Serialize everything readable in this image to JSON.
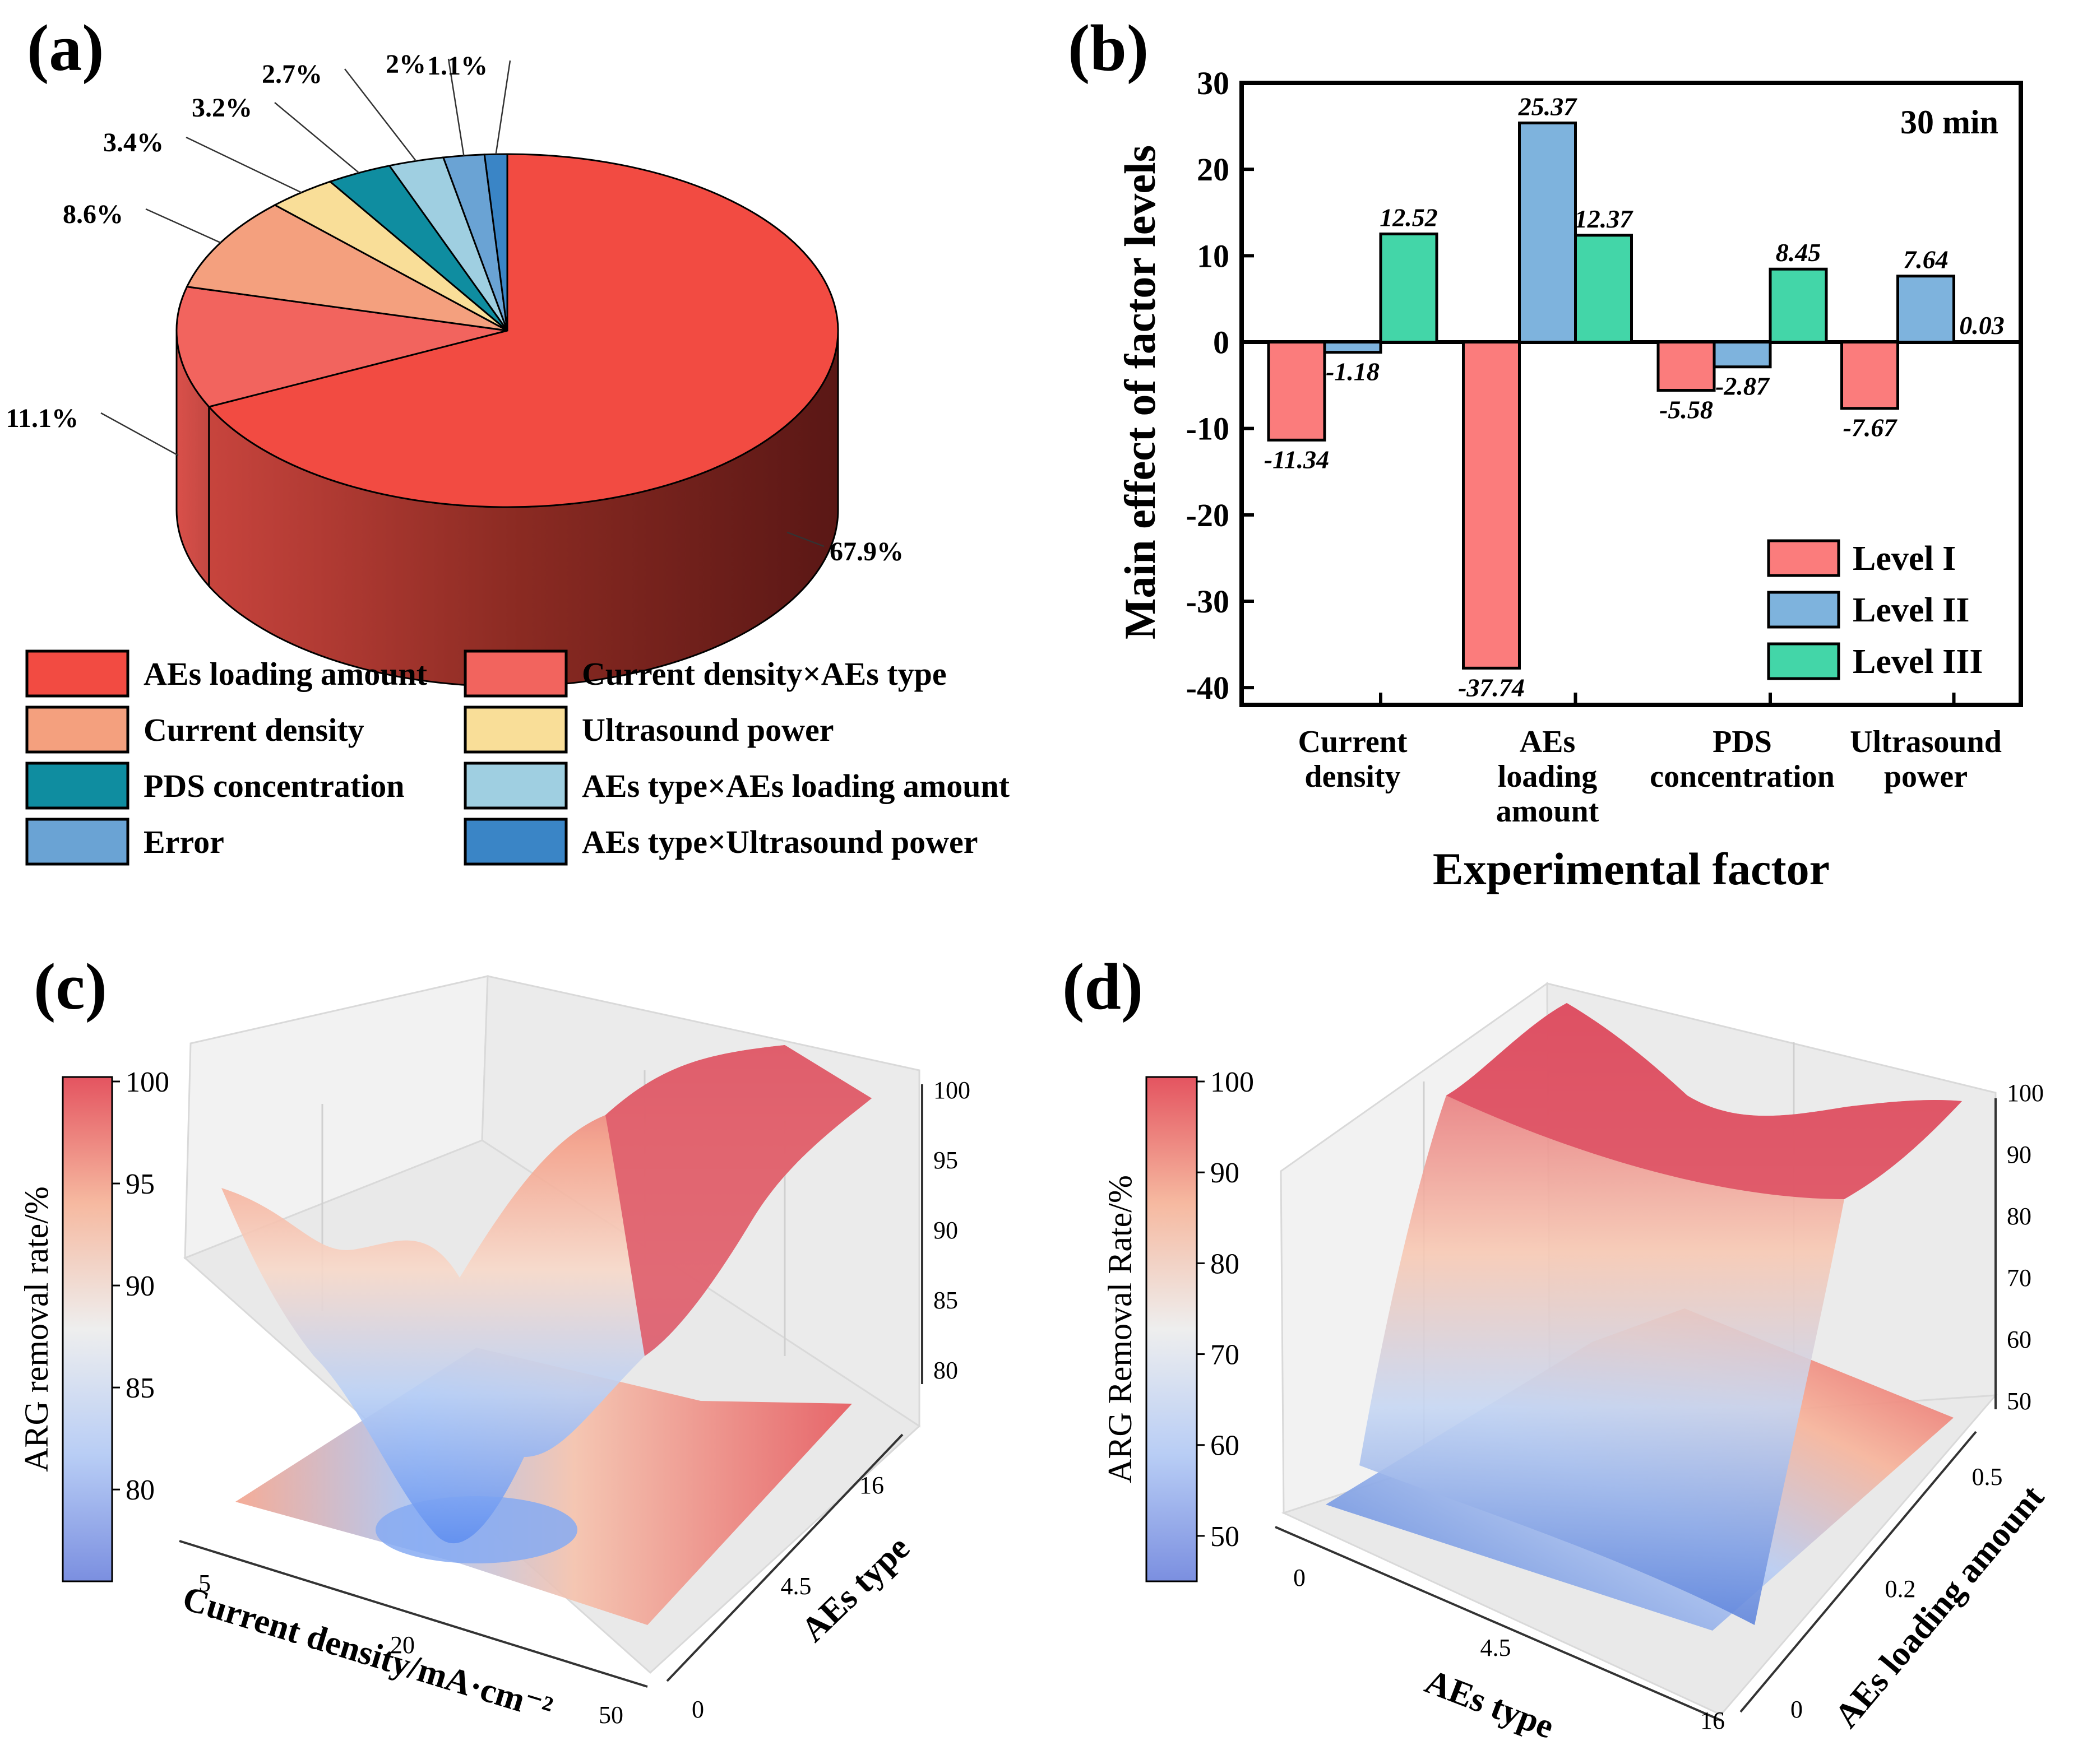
{
  "panel_labels": [
    "(a)",
    "(b)",
    "(c)",
    "(d)"
  ],
  "chart_data": [
    {
      "id": "a",
      "type": "pie",
      "title": "",
      "slices": [
        {
          "label": "AEs loading amount",
          "value": 67.9,
          "text": "67.9%",
          "color": "#f24b42"
        },
        {
          "label": "Current density×AEs type",
          "value": 11.1,
          "text": "11.1%",
          "color": "#f2645e"
        },
        {
          "label": "Current density",
          "value": 8.6,
          "text": "8.6%",
          "color": "#f4a07e"
        },
        {
          "label": "Ultrasound power",
          "value": 3.4,
          "text": "3.4%",
          "color": "#f9de98"
        },
        {
          "label": "PDS concentration",
          "value": 3.2,
          "text": "3.2%",
          "color": "#0f8da0"
        },
        {
          "label": "AEs type×AEs loading amount",
          "value": 2.7,
          "text": "2.7%",
          "color": "#9fcfe1"
        },
        {
          "label": "Error",
          "value": 2.0,
          "text": "2%",
          "color": "#6aa3d4"
        },
        {
          "label": "AEs type×Ultrasound power",
          "value": 1.1,
          "text": "1.1%",
          "color": "#3a85c6"
        }
      ],
      "legend": {
        "placement": "bottom",
        "items": [
          {
            "label": "AEs loading amount",
            "color": "#f24b42"
          },
          {
            "label": "Current density×AEs type",
            "color": "#f2645e"
          },
          {
            "label": "Current density",
            "color": "#f4a07e"
          },
          {
            "label": "Ultrasound power",
            "color": "#f9de98"
          },
          {
            "label": "PDS concentration",
            "color": "#0f8da0"
          },
          {
            "label": "AEs type×AEs loading amount",
            "color": "#9fcfe1"
          },
          {
            "label": "Error",
            "color": "#6aa3d4"
          },
          {
            "label": "AEs type×Ultrasound power",
            "color": "#3a85c6"
          }
        ]
      }
    },
    {
      "id": "b",
      "type": "bar",
      "annotation": "30 min",
      "xlabel": "Experimental factor",
      "ylabel": "Main effect of factor levels",
      "ylim": [
        -42,
        30
      ],
      "yticks": [
        -40,
        -30,
        -20,
        -10,
        0,
        10,
        20,
        30
      ],
      "categories": [
        "Current density",
        "AEs loading amount",
        "PDS concentration",
        "Ultrasound power"
      ],
      "category_lines": [
        [
          "Current",
          "density"
        ],
        [
          "AEs",
          "loading",
          "amount"
        ],
        [
          "PDS",
          "concentration"
        ],
        [
          "Ultrasound",
          "power"
        ]
      ],
      "series": [
        {
          "name": "Level I",
          "color": "#fb7c7c",
          "values": [
            -11.34,
            -37.74,
            -5.58,
            -7.67
          ],
          "labels": [
            "-11.34",
            "-37.74",
            "-5.58",
            "-7.67"
          ]
        },
        {
          "name": "Level II",
          "color": "#7eb3dd",
          "values": [
            -1.18,
            25.37,
            -2.87,
            7.64
          ],
          "labels": [
            "-1.18",
            "25.37",
            "-2.87",
            "7.64"
          ]
        },
        {
          "name": "Level III",
          "color": "#43d6a8",
          "values": [
            12.52,
            12.37,
            8.45,
            0.03
          ],
          "labels": [
            "12.52",
            "12.37",
            "8.45",
            "0.03"
          ]
        }
      ],
      "legend": {
        "placement": "bottom-right",
        "items": [
          "Level I",
          "Level II",
          "Level III"
        ]
      }
    },
    {
      "id": "c",
      "type": "surface",
      "xlabel": "Current density/mA·cm⁻²",
      "ylabel": "AEs type",
      "zlabel": "",
      "xticks": [
        "5",
        "20",
        "50"
      ],
      "yticks": [
        "0",
        "4.5",
        "16"
      ],
      "zticks": [
        "80",
        "85",
        "90",
        "95",
        "100"
      ],
      "zlim": [
        76,
        100
      ],
      "colorbar": {
        "label": "ARG removal rate/%",
        "ticks": [
          "80",
          "85",
          "90",
          "95",
          "100"
        ],
        "range": [
          75.5,
          100
        ]
      }
    },
    {
      "id": "d",
      "type": "surface",
      "xlabel": "AEs type",
      "ylabel": "AEs loading amount",
      "zlabel": "",
      "xticks": [
        "0",
        "4.5",
        "16"
      ],
      "yticks": [
        "0",
        "0.2",
        "0.5"
      ],
      "zticks": [
        "50",
        "60",
        "70",
        "80",
        "90",
        "100"
      ],
      "zlim": [
        47,
        100
      ],
      "colorbar": {
        "label": "ARG Removal Rate/%",
        "ticks": [
          "50",
          "60",
          "70",
          "80",
          "90",
          "100"
        ],
        "range": [
          45,
          100
        ]
      }
    }
  ]
}
